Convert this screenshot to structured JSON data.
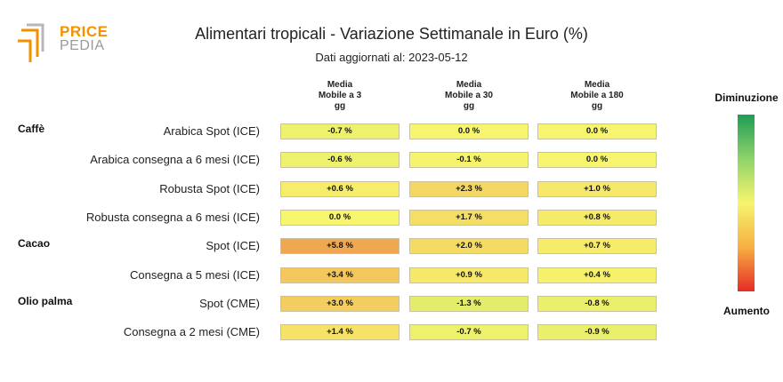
{
  "logo": {
    "line1": "PRICE",
    "line2": "PEDIA"
  },
  "chart_data": {
    "type": "heatmap",
    "title": "Alimentari tropicali - Variazione Settimanale in Euro (%)",
    "subtitle": "Dati aggiornati al: 2023-05-12",
    "columns": [
      "Media\nMobile a 3\ngg",
      "Media\nMobile a 30\ngg",
      "Media\nMobile a 180\ngg"
    ],
    "groups": [
      {
        "name": "Caffè",
        "rows": [
          {
            "label": "Arabica Spot (ICE)",
            "values": [
              -0.7,
              0.0,
              0.0
            ],
            "texts": [
              "-0.7 %",
              "0.0 %",
              "0.0 %"
            ]
          },
          {
            "label": "Arabica consegna a 6 mesi (ICE)",
            "values": [
              -0.6,
              -0.1,
              0.0
            ],
            "texts": [
              "-0.6 %",
              "-0.1 %",
              "0.0 %"
            ]
          },
          {
            "label": "Robusta Spot (ICE)",
            "values": [
              0.6,
              2.3,
              1.0
            ],
            "texts": [
              "+0.6 %",
              "+2.3 %",
              "+1.0 %"
            ]
          },
          {
            "label": "Robusta consegna a 6 mesi (ICE)",
            "values": [
              0.0,
              1.7,
              0.8
            ],
            "texts": [
              "0.0 %",
              "+1.7 %",
              "+0.8 %"
            ]
          }
        ]
      },
      {
        "name": "Cacao",
        "rows": [
          {
            "label": "Spot (ICE)",
            "values": [
              5.8,
              2.0,
              0.7
            ],
            "texts": [
              "+5.8 %",
              "+2.0 %",
              "+0.7 %"
            ]
          },
          {
            "label": "Consegna a 5 mesi (ICE)",
            "values": [
              3.4,
              0.9,
              0.4
            ],
            "texts": [
              "+3.4 %",
              "+0.9 %",
              "+0.4 %"
            ]
          }
        ]
      },
      {
        "name": "Olio palma",
        "rows": [
          {
            "label": "Spot (CME)",
            "values": [
              3.0,
              -1.3,
              -0.8
            ],
            "texts": [
              "+3.0 %",
              "-1.3 %",
              "-0.8 %"
            ]
          },
          {
            "label": "Consegna a 2 mesi (CME)",
            "values": [
              1.4,
              -0.7,
              -0.9
            ],
            "texts": [
              "+1.4 %",
              "-0.7 %",
              "-0.9 %"
            ]
          }
        ]
      }
    ],
    "legend": {
      "top": "Diminuzione",
      "bottom": "Aumento"
    },
    "colors": {
      "decrease": "#1f9d55",
      "neutral": "#f7f56d",
      "increase": "#e52b26"
    }
  }
}
